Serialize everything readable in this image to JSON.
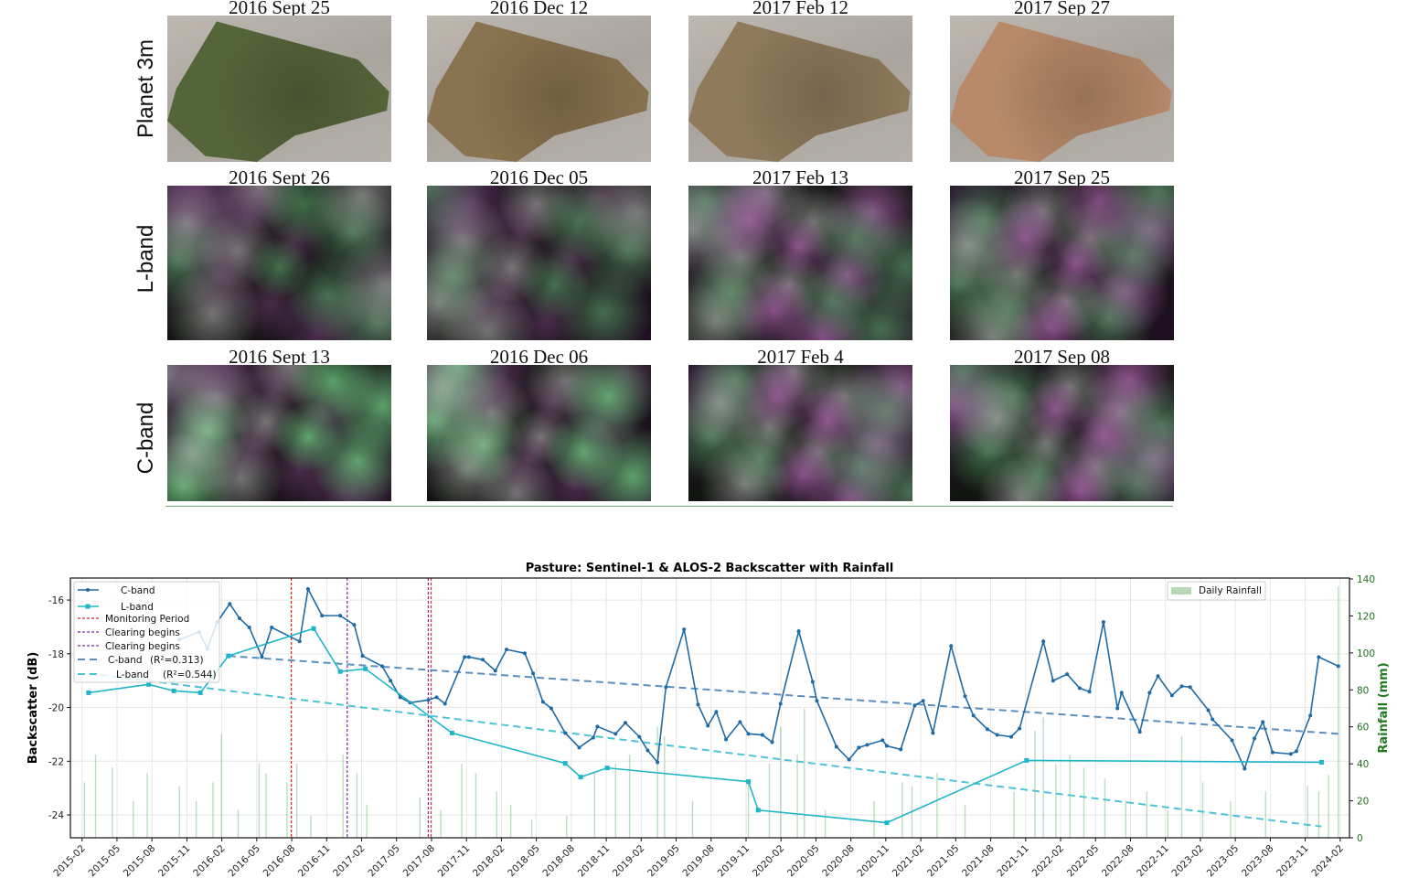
{
  "figure": {
    "rows": [
      {
        "label": "Planet 3m",
        "kind": "planet",
        "panels": [
          "2016 Sept 25",
          "2016 Dec 12",
          "2017 Feb 12",
          "2017 Sep 27"
        ]
      },
      {
        "label": "L-band",
        "kind": "sar",
        "panels": [
          "2016 Sept 26",
          "2016 Dec 05",
          "2017 Feb 13",
          "2017 Sep 25"
        ]
      },
      {
        "label": "C-band",
        "kind": "sar",
        "panels": [
          "2016 Sept 13",
          "2016 Dec 06",
          "2017 Feb 4",
          "2017 Sep 08"
        ]
      }
    ],
    "planet_colors": [
      "#55653a",
      "#8a7350",
      "#8f7b5c",
      "#b88a6a"
    ],
    "sar_variants": [
      0,
      1,
      2,
      3
    ]
  },
  "chart_data": {
    "type": "line",
    "title": "Pasture: Sentinel-1 & ALOS-2 Backscatter with Rainfall",
    "xlabel": "",
    "ylabel": "Backscatter (dB)",
    "ylabel_right": "Rainfall (mm)",
    "x_units": "decimal year",
    "xlim": [
      2015.0,
      2024.15
    ],
    "ylim": [
      -24.85,
      -15.18
    ],
    "ylim_right": [
      0,
      140.5
    ],
    "yticks": [
      -16,
      -18,
      -20,
      -22,
      -24
    ],
    "yticks_right": [
      0,
      20,
      40,
      60,
      80,
      100,
      120,
      140
    ],
    "xtick_start": 2015.0833,
    "xtick_step_months": 3,
    "xtick_labels": [
      "2015-02",
      "2015-05",
      "2015-08",
      "2015-11",
      "2016-02",
      "2016-05",
      "2016-08",
      "2016-11",
      "2017-02",
      "2017-05",
      "2017-08",
      "2017-11",
      "2018-02",
      "2018-05",
      "2018-08",
      "2018-11",
      "2019-02",
      "2019-05",
      "2019-08",
      "2019-11",
      "2020-02",
      "2020-05",
      "2020-08",
      "2020-11",
      "2021-02",
      "2021-05",
      "2021-08",
      "2021-11",
      "2022-02",
      "2022-05",
      "2022-08",
      "2022-11",
      "2023-02",
      "2023-05",
      "2023-08",
      "2023-11",
      "2024-02"
    ],
    "grid": true,
    "legend_left": "top-left",
    "legend_right": "top-right",
    "colors": {
      "c_band": "#1f6aa5",
      "l_band": "#1fb5c9",
      "c_trend": "#5a8fc0",
      "l_trend": "#4fc3d6",
      "monitoring": "#e0262a",
      "clearing": "#7b2a9a",
      "rain": "#6fb36f",
      "right_axis": "#1f7a1f"
    },
    "legend": [
      "C-band",
      "L-band",
      "Monitoring Period",
      "Clearing begins",
      "Clearing begins",
      "C-band",
      "(R²=0.313)",
      "L-band",
      "(R²=0.544)",
      "Daily Rainfall"
    ],
    "series": [
      {
        "name": "C-band",
        "x": [
          2015.78,
          2015.92,
          2015.98,
          2016.05,
          2016.14,
          2016.21,
          2016.28,
          2016.37,
          2016.44,
          2016.64,
          2016.7,
          2016.8,
          2016.93,
          2017.03,
          2017.09,
          2017.23,
          2017.29,
          2017.36,
          2017.43,
          2017.56,
          2017.62,
          2017.68,
          2017.82,
          2017.85,
          2017.95,
          2018.04,
          2018.12,
          2018.25,
          2018.31,
          2018.38,
          2018.44,
          2018.54,
          2018.64,
          2018.74,
          2018.77,
          2018.9,
          2018.97,
          2019.07,
          2019.13,
          2019.2,
          2019.26,
          2019.39,
          2019.49,
          2019.56,
          2019.62,
          2019.69,
          2019.79,
          2019.85,
          2019.95,
          2020.02,
          2020.08,
          2020.21,
          2020.31,
          2020.34,
          2020.48,
          2020.57,
          2020.64,
          2020.7,
          2020.81,
          2020.84,
          2020.94,
          2021.04,
          2021.1,
          2021.17,
          2021.3,
          2021.4,
          2021.46,
          2021.56,
          2021.63,
          2021.73,
          2021.79,
          2021.96,
          2022.03,
          2022.13,
          2022.22,
          2022.29,
          2022.39,
          2022.49,
          2022.52,
          2022.65,
          2022.72,
          2022.78,
          2022.88,
          2022.95,
          2023.01,
          2023.14,
          2023.17,
          2023.31,
          2023.4,
          2023.47,
          2023.53,
          2023.6,
          2023.73,
          2023.77,
          2023.87,
          2023.93,
          2024.07
        ],
        "values": [
          -17.47,
          -17.19,
          -17.81,
          -16.82,
          -16.14,
          -16.68,
          -17.02,
          -18.12,
          -17.02,
          -17.54,
          -15.59,
          -16.58,
          -16.58,
          -16.92,
          -18.08,
          -18.46,
          -19.0,
          -19.62,
          -19.82,
          -19.72,
          -19.62,
          -19.86,
          -18.12,
          -18.12,
          -18.22,
          -18.63,
          -17.84,
          -17.98,
          -18.73,
          -19.79,
          -20.03,
          -20.95,
          -21.49,
          -21.12,
          -20.71,
          -20.98,
          -20.57,
          -21.09,
          -21.6,
          -22.04,
          -19.24,
          -17.09,
          -19.89,
          -20.68,
          -20.16,
          -21.19,
          -20.54,
          -20.98,
          -21.02,
          -21.29,
          -19.86,
          -17.16,
          -19.04,
          -19.75,
          -21.46,
          -21.94,
          -21.49,
          -21.39,
          -21.22,
          -21.43,
          -21.56,
          -19.92,
          -19.75,
          -20.95,
          -17.71,
          -19.58,
          -20.3,
          -20.81,
          -21.02,
          -21.09,
          -20.78,
          -17.54,
          -19.0,
          -18.76,
          -19.28,
          -19.41,
          -16.82,
          -20.03,
          -19.45,
          -20.91,
          -19.45,
          -18.83,
          -19.55,
          -19.21,
          -19.24,
          -20.1,
          -20.44,
          -21.22,
          -22.28,
          -21.15,
          -20.54,
          -21.67,
          -21.73,
          -21.63,
          -20.3,
          -18.12,
          -18.46
        ]
      },
      {
        "name": "L-band",
        "x": [
          2015.13,
          2015.56,
          2015.74,
          2015.93,
          2016.13,
          2016.74,
          2016.93,
          2017.11,
          2017.73,
          2018.54,
          2018.65,
          2018.84,
          2019.85,
          2019.92,
          2020.84,
          2021.84,
          2023.95
        ],
        "values": [
          -19.45,
          -19.14,
          -19.38,
          -19.45,
          -18.08,
          -17.06,
          -18.66,
          -18.56,
          -20.95,
          -22.08,
          -22.59,
          -22.25,
          -22.76,
          -23.82,
          -24.29,
          -21.97,
          -22.04
        ]
      }
    ],
    "trends": [
      {
        "name": "C-band",
        "r2": 0.313,
        "x": [
          2016.13,
          2024.07
        ],
        "values": [
          -18.08,
          -20.98
        ]
      },
      {
        "name": "L-band",
        "r2": 0.544,
        "x": [
          2015.13,
          2023.95
        ],
        "values": [
          -18.73,
          -24.43
        ]
      }
    ],
    "vlines": [
      {
        "label": "Monitoring Period",
        "x": 2016.58,
        "kind": "monitoring"
      },
      {
        "label": "Clearing begins",
        "x": 2016.98,
        "kind": "clearing"
      },
      {
        "label": "Clearing begins",
        "x": 2017.56,
        "kind": "clearing"
      },
      {
        "label": "Monitoring Period",
        "x": 2017.58,
        "kind": "monitoring"
      }
    ],
    "rainfall": {
      "name": "Daily Rainfall",
      "x": [
        2015.1,
        2015.18,
        2015.3,
        2015.45,
        2015.55,
        2015.78,
        2015.9,
        2016.02,
        2016.08,
        2016.2,
        2016.35,
        2016.4,
        2016.55,
        2016.62,
        2016.72,
        2016.95,
        2017.05,
        2017.12,
        2017.5,
        2017.65,
        2017.8,
        2017.9,
        2018.05,
        2018.15,
        2018.3,
        2018.55,
        2018.75,
        2018.9,
        2019.0,
        2019.2,
        2019.25,
        2019.45,
        2019.85,
        2020.0,
        2020.08,
        2020.2,
        2020.25,
        2020.4,
        2020.75,
        2020.95,
        2021.02,
        2021.2,
        2021.4,
        2021.75,
        2021.9,
        2021.96,
        2022.05,
        2022.15,
        2022.25,
        2022.4,
        2022.55,
        2022.7,
        2022.85,
        2022.95,
        2023.1,
        2023.3,
        2023.55,
        2023.85,
        2023.93,
        2024.0,
        2024.07
      ],
      "values": [
        30,
        45,
        38,
        20,
        35,
        28,
        20,
        30,
        56,
        15,
        40,
        35,
        30,
        40,
        12,
        45,
        35,
        18,
        22,
        15,
        40,
        35,
        25,
        18,
        10,
        12,
        35,
        40,
        45,
        60,
        55,
        20,
        30,
        40,
        60,
        45,
        70,
        15,
        20,
        30,
        28,
        35,
        18,
        25,
        58,
        65,
        40,
        45,
        38,
        32,
        20,
        25,
        15,
        55,
        30,
        20,
        25,
        28,
        25,
        34,
        136
      ]
    }
  }
}
